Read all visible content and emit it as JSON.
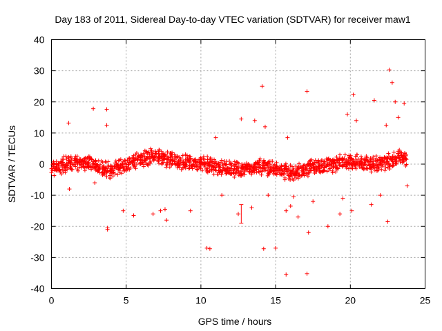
{
  "chart_data": {
    "type": "scatter",
    "title": "Day 183 of 2011, Sidereal Day-to-day VTEC variation (SDTVAR) for receiver maw1",
    "xlabel": "GPS time / hours",
    "ylabel": "SDTVAR / TECUs",
    "xlim": [
      0,
      25
    ],
    "ylim": [
      -40,
      40
    ],
    "xticks": [
      0,
      5,
      10,
      15,
      20,
      25
    ],
    "yticks": [
      -40,
      -30,
      -20,
      -10,
      0,
      10,
      20,
      30,
      40
    ],
    "xtick_labels": [
      "0",
      "5",
      "10",
      "15",
      "20",
      "25"
    ],
    "ytick_labels": [
      "-40",
      "-30",
      "-20",
      "-10",
      "0",
      "10",
      "20",
      "30",
      "40"
    ],
    "grid": true,
    "marker": "plus",
    "color": "#ff0000",
    "series": [
      {
        "name": "SDTVAR",
        "x": [
          0.0,
          0.25,
          0.5,
          0.75,
          1.0,
          1.25,
          1.5,
          1.75,
          2.0,
          2.25,
          2.5,
          2.75,
          3.0,
          3.25,
          3.5,
          3.75,
          4.0,
          4.25,
          4.5,
          4.75,
          5.0,
          5.25,
          5.5,
          5.75,
          6.0,
          6.25,
          6.5,
          6.75,
          7.0,
          7.25,
          7.5,
          7.75,
          8.0,
          8.25,
          8.5,
          8.75,
          9.0,
          9.25,
          9.5,
          9.75,
          10.0,
          10.25,
          10.5,
          10.75,
          11.0,
          11.25,
          11.5,
          11.75,
          12.0,
          12.25,
          12.5,
          12.75,
          13.0,
          13.25,
          13.5,
          13.75,
          14.0,
          14.25,
          14.5,
          14.75,
          15.0,
          15.25,
          15.5,
          15.75,
          16.0,
          16.25,
          16.5,
          16.75,
          17.0,
          17.25,
          17.5,
          17.75,
          18.0,
          18.25,
          18.5,
          18.75,
          19.0,
          19.25,
          19.5,
          19.75,
          20.0,
          20.25,
          20.5,
          20.75,
          21.0,
          21.25,
          21.5,
          21.75,
          22.0,
          22.25,
          22.5,
          22.75,
          23.0,
          23.25,
          23.5,
          23.75,
          1.15,
          1.2,
          2.8,
          2.9,
          3.7,
          3.75,
          3.7,
          3.75,
          4.8,
          5.5,
          6.8,
          7.3,
          7.6,
          7.7,
          9.3,
          10.4,
          11.0,
          11.4,
          12.5,
          12.7,
          13.4,
          13.6,
          14.1,
          14.3,
          14.5,
          15.0,
          15.7,
          15.8,
          16.0,
          16.2,
          16.5,
          17.1,
          17.2,
          17.5,
          18.5,
          19.3,
          19.5,
          19.8,
          20.1,
          20.2,
          20.4,
          21.4,
          21.6,
          22.0,
          22.4,
          22.5,
          22.6,
          22.8,
          23.0,
          23.2,
          23.6,
          23.8
        ],
        "y": [
          -1.5,
          -1.5,
          -0.5,
          -0.5,
          0.0,
          0.0,
          0.0,
          0.0,
          0.5,
          0.5,
          0.5,
          0.0,
          -0.5,
          -1.0,
          -1.5,
          -2.0,
          -2.0,
          -1.5,
          -1.0,
          -0.5,
          0.0,
          0.5,
          1.0,
          1.5,
          1.5,
          2.0,
          2.0,
          2.5,
          2.5,
          2.5,
          2.0,
          1.5,
          1.5,
          1.0,
          1.0,
          0.5,
          0.5,
          0.5,
          0.0,
          0.0,
          0.0,
          0.0,
          -0.5,
          -0.5,
          -1.0,
          -1.0,
          -1.0,
          -1.5,
          -1.5,
          -1.5,
          -2.0,
          -2.0,
          -1.5,
          -1.5,
          -1.0,
          -1.0,
          -1.0,
          -1.0,
          -1.0,
          -1.0,
          -1.5,
          -1.5,
          -2.0,
          -2.5,
          -3.0,
          -3.0,
          -2.5,
          -2.0,
          -1.5,
          -1.5,
          -1.0,
          -1.0,
          -0.5,
          -0.5,
          0.0,
          0.0,
          0.0,
          0.5,
          0.5,
          0.5,
          1.0,
          0.5,
          0.5,
          0.0,
          0.0,
          0.0,
          0.0,
          0.0,
          0.5,
          0.5,
          1.0,
          1.5,
          1.5,
          2.0,
          2.0,
          1.5,
          13.2,
          -8.0,
          17.8,
          -6.0,
          17.6,
          -21.0,
          12.5,
          -20.5,
          -15.0,
          -16.5,
          -16.0,
          -15.0,
          -14.5,
          -18.0,
          -15.0,
          -27.0,
          8.5,
          -10.0,
          -16.0,
          14.5,
          -14.0,
          14.0,
          25.0,
          12.0,
          -10.0,
          -27.0,
          -15.0,
          8.5,
          -13.5,
          -10.5,
          -17.0,
          23.4,
          -22.0,
          -12.0,
          -20.0,
          -16.0,
          -11.0,
          16.0,
          -15.0,
          22.3,
          14.0,
          -13.0,
          20.5,
          -10.0,
          12.5,
          -18.5,
          30.3,
          26.2,
          20.0,
          15.0,
          19.5,
          -7.0
        ]
      }
    ],
    "annotations": {
      "band_min_points": [
        [
          15.7,
          -35.5
        ],
        [
          17.1,
          -35.2
        ],
        [
          10.6,
          -27.2
        ],
        [
          14.2,
          -27.2
        ]
      ],
      "error_bar": {
        "x": 12.7,
        "y": -16.0,
        "low": -19.0,
        "high": -13.0
      }
    }
  }
}
